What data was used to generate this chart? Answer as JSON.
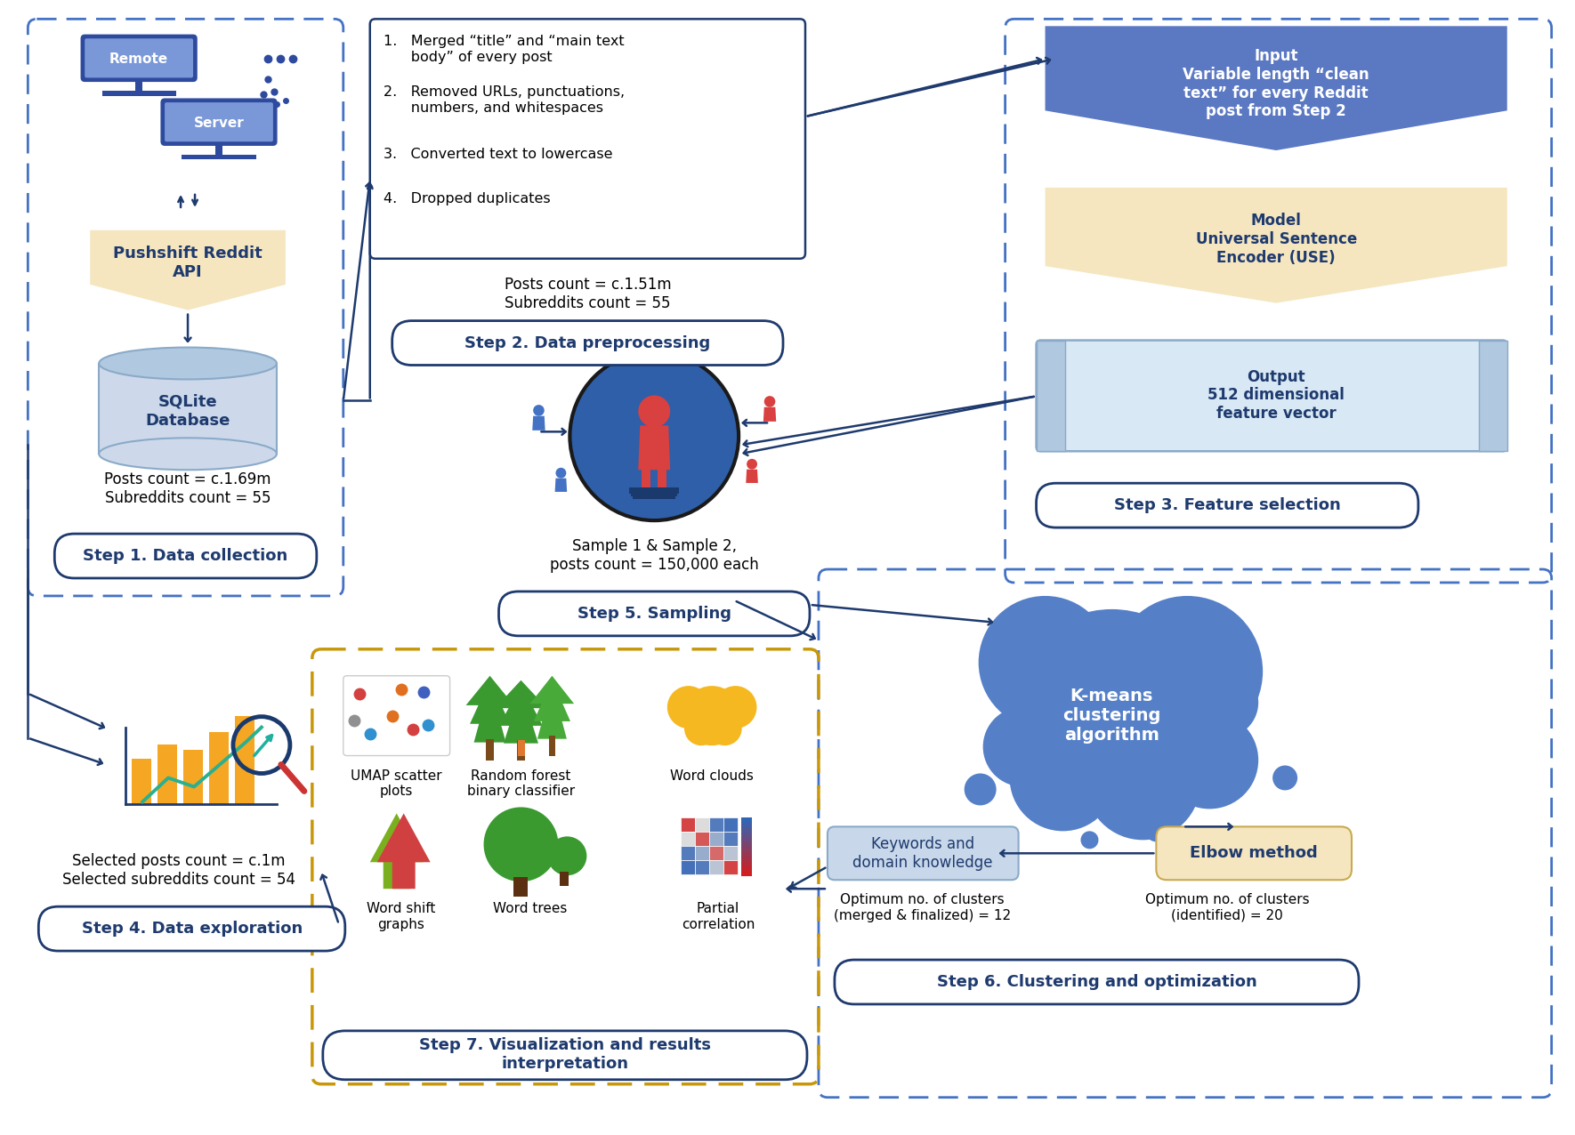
{
  "bg_color": "#ffffff",
  "dark_blue": "#1e3a6e",
  "med_blue": "#4472c4",
  "light_blue": "#cdd9ea",
  "lighter_blue": "#dce8f5",
  "blue_fill": "#5b78c2",
  "yellow": "#f5e6c0",
  "gold": "#c8980a",
  "kmeans_blue": "#4472c4",
  "step1_stats": "Posts count = c.1.69m\nSubreddits count = 55",
  "step2_stats": "Posts count = c.1.51m\nSubreddits count = 55",
  "step4_stats": "Selected posts count = c.1m\nSelected subreddits count = 54",
  "step5_stats": "Sample 1 & Sample 2,\nposts count = 150,000 each",
  "step6_opt1": "Optimum no. of clusters\n(merged & finalized) = 12",
  "step6_opt2": "Optimum no. of clusters\n(identified) = 20",
  "step1_label": "Step 1. Data collection",
  "step2_label": "Step 2. Data preprocessing",
  "step3_label": "Step 3. Feature selection",
  "step4_label": "Step 4. Data exploration",
  "step5_label": "Step 5. Sampling",
  "step6_label": "Step 6. Clustering and optimization",
  "step7_label": "Step 7. Visualization and results\ninterpretation",
  "step2_items": [
    "1.   Merged “title” and “main text\n      body” of every post",
    "2.   Removed URLs, punctuations,\n      numbers, and whitespaces",
    "3.   Converted text to lowercase",
    "4.   Dropped duplicates"
  ],
  "input_text": "Input\nVariable length “clean\ntext” for every Reddit\npost from Step 2",
  "model_text": "Model\nUniversal Sentence\nEncoder (USE)",
  "output_text": "Output\n512 dimensional\nfeature vector",
  "elbow_text": "Elbow method",
  "keywords_text": "Keywords and\ndomain knowledge"
}
